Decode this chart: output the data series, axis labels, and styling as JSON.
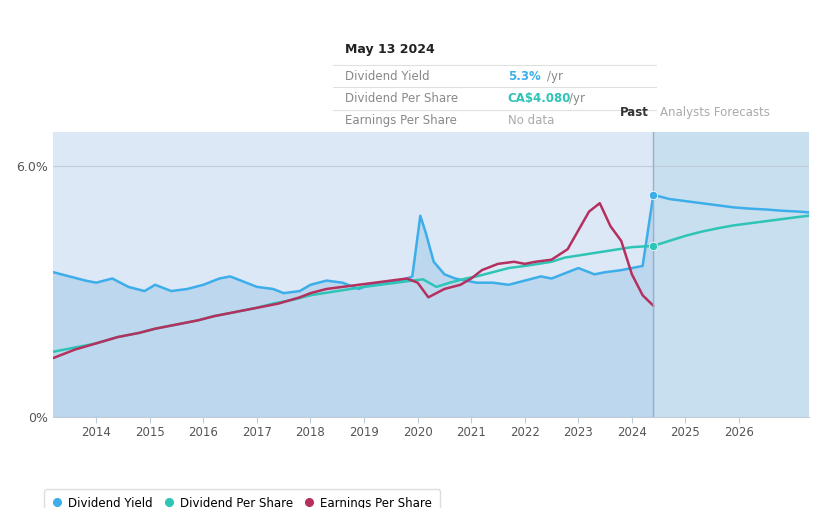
{
  "bg_color": "#ffffff",
  "chart_bg_color": "#dce8f5",
  "forecast_bg_color": "#c8dff0",
  "past_label": "Past",
  "forecast_label": "Analysts Forecasts",
  "divider_x": 2024.4,
  "x_min": 2013.2,
  "x_max": 2027.3,
  "y_min": 0.0,
  "y_max": 6.8,
  "y_tick_6": 6.0,
  "y_tick_0": 0.0,
  "x_ticks": [
    2014,
    2015,
    2016,
    2017,
    2018,
    2019,
    2020,
    2021,
    2022,
    2023,
    2024,
    2025,
    2026
  ],
  "line_colors": {
    "dividend_yield": "#3daee9",
    "dividend_per_share": "#2ec4b6",
    "earnings_per_share": "#b5305e"
  },
  "tooltip": {
    "date": "May 13 2024",
    "yield_label": "Dividend Yield",
    "yield_value": "5.3%",
    "yield_unit": "/yr",
    "dps_label": "Dividend Per Share",
    "dps_value": "CA$4.080",
    "dps_unit": "/yr",
    "eps_label": "Earnings Per Share",
    "eps_value": "No data"
  },
  "dividend_yield_x": [
    2013.2,
    2013.5,
    2013.8,
    2014.0,
    2014.3,
    2014.6,
    2014.9,
    2015.1,
    2015.4,
    2015.7,
    2016.0,
    2016.3,
    2016.5,
    2016.8,
    2017.0,
    2017.3,
    2017.5,
    2017.8,
    2018.0,
    2018.3,
    2018.6,
    2018.9,
    2019.1,
    2019.4,
    2019.7,
    2019.9,
    2020.05,
    2020.15,
    2020.3,
    2020.5,
    2020.7,
    2020.9,
    2021.1,
    2021.4,
    2021.7,
    2022.0,
    2022.3,
    2022.5,
    2022.8,
    2023.0,
    2023.3,
    2023.5,
    2023.8,
    2024.0,
    2024.2,
    2024.4,
    2024.7,
    2025.0,
    2025.3,
    2025.6,
    2025.9,
    2026.2,
    2026.5,
    2026.8,
    2027.1,
    2027.3
  ],
  "dividend_yield_y": [
    3.45,
    3.35,
    3.25,
    3.2,
    3.3,
    3.1,
    3.0,
    3.15,
    3.0,
    3.05,
    3.15,
    3.3,
    3.35,
    3.2,
    3.1,
    3.05,
    2.95,
    3.0,
    3.15,
    3.25,
    3.2,
    3.05,
    3.15,
    3.2,
    3.25,
    3.35,
    4.8,
    4.4,
    3.7,
    3.4,
    3.3,
    3.25,
    3.2,
    3.2,
    3.15,
    3.25,
    3.35,
    3.3,
    3.45,
    3.55,
    3.4,
    3.45,
    3.5,
    3.55,
    3.6,
    5.3,
    5.2,
    5.15,
    5.1,
    5.05,
    5.0,
    4.97,
    4.95,
    4.92,
    4.9,
    4.88
  ],
  "dividend_per_share_x": [
    2013.2,
    2013.6,
    2014.0,
    2014.4,
    2014.8,
    2015.1,
    2015.5,
    2015.9,
    2016.2,
    2016.6,
    2017.0,
    2017.3,
    2017.7,
    2018.0,
    2018.25,
    2018.5,
    2018.75,
    2019.0,
    2019.3,
    2019.6,
    2019.9,
    2020.1,
    2020.35,
    2020.6,
    2020.9,
    2021.1,
    2021.4,
    2021.7,
    2022.0,
    2022.25,
    2022.5,
    2022.75,
    2023.0,
    2023.25,
    2023.5,
    2023.75,
    2024.0,
    2024.4,
    2024.7,
    2025.0,
    2025.3,
    2025.6,
    2025.9,
    2026.2,
    2026.5,
    2026.8,
    2027.1,
    2027.3
  ],
  "dividend_per_share_y": [
    1.55,
    1.65,
    1.75,
    1.9,
    2.0,
    2.1,
    2.2,
    2.3,
    2.4,
    2.5,
    2.6,
    2.7,
    2.8,
    2.9,
    2.95,
    3.0,
    3.05,
    3.1,
    3.15,
    3.2,
    3.25,
    3.28,
    3.1,
    3.2,
    3.3,
    3.35,
    3.45,
    3.55,
    3.6,
    3.65,
    3.7,
    3.8,
    3.85,
    3.9,
    3.95,
    4.0,
    4.05,
    4.08,
    4.2,
    4.32,
    4.42,
    4.5,
    4.57,
    4.62,
    4.67,
    4.72,
    4.77,
    4.8
  ],
  "earnings_per_share_x": [
    2013.2,
    2013.6,
    2014.0,
    2014.4,
    2014.8,
    2015.1,
    2015.5,
    2015.9,
    2016.2,
    2016.6,
    2017.0,
    2017.4,
    2017.8,
    2018.0,
    2018.3,
    2018.6,
    2018.9,
    2019.2,
    2019.5,
    2019.8,
    2020.0,
    2020.2,
    2020.5,
    2020.8,
    2021.0,
    2021.2,
    2021.5,
    2021.8,
    2022.0,
    2022.2,
    2022.5,
    2022.8,
    2023.0,
    2023.2,
    2023.4,
    2023.6,
    2023.8,
    2024.0,
    2024.2,
    2024.4
  ],
  "earnings_per_share_y": [
    1.4,
    1.6,
    1.75,
    1.9,
    2.0,
    2.1,
    2.2,
    2.3,
    2.4,
    2.5,
    2.6,
    2.7,
    2.85,
    2.95,
    3.05,
    3.1,
    3.15,
    3.2,
    3.25,
    3.3,
    3.2,
    2.85,
    3.05,
    3.15,
    3.3,
    3.5,
    3.65,
    3.7,
    3.65,
    3.7,
    3.75,
    4.0,
    4.45,
    4.9,
    5.1,
    4.55,
    4.2,
    3.4,
    2.9,
    2.65
  ]
}
